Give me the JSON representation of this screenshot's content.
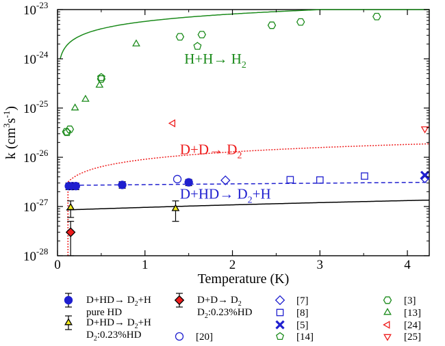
{
  "chart_data": {
    "type": "scatter",
    "xlabel": "Temperature (K)",
    "ylabel": "k (cm³s⁻¹)",
    "ylabel_parts": {
      "main": "k (cm",
      "exp1": "3",
      "mid": "s",
      "exp2": "-1",
      "end": ")"
    },
    "xlim": [
      0,
      4.25
    ],
    "ylim": [
      1e-28,
      1e-23
    ],
    "yscale": "log",
    "x_ticks": [
      "0",
      "1",
      "2",
      "3",
      "4"
    ],
    "y_ticks": [
      {
        "base": "10",
        "exp": "-28",
        "value": 1e-28
      },
      {
        "base": "10",
        "exp": "-27",
        "value": 1e-27
      },
      {
        "base": "10",
        "exp": "-26",
        "value": 1e-26
      },
      {
        "base": "10",
        "exp": "-25",
        "value": 1e-25
      },
      {
        "base": "10",
        "exp": "-24",
        "value": 1e-24
      },
      {
        "base": "10",
        "exp": "-23",
        "value": 1e-23
      }
    ],
    "annotations": [
      {
        "id": "hh",
        "pre": "H+H",
        "arrow": "→",
        "post": " H",
        "sub": "2",
        "tail": "",
        "color": "#1a8a1a",
        "x": 1.45,
        "y": 8e-25
      },
      {
        "id": "dd",
        "pre": "D+D",
        "arrow": "→",
        "post": " D",
        "sub": "2",
        "tail": "",
        "color": "#ee1c1c",
        "x": 1.4,
        "y": 1.15e-26
      },
      {
        "id": "dhd",
        "pre": "D+HD",
        "arrow": "→",
        "post": " D",
        "sub": "2",
        "tail": "+H",
        "color": "#1f1fcf",
        "x": 1.4,
        "y": 1.45e-27
      }
    ],
    "curves": [
      {
        "id": "hh-fit",
        "color": "#1a8a1a",
        "style": "solid",
        "a": 5.75e-24,
        "p": 0.5,
        "xmin": 0.03
      },
      {
        "id": "dd-fit",
        "color": "#ee1c1c",
        "style": "dotted",
        "a": 9.1e-27,
        "p": 0.5,
        "xmin": 0.12,
        "xcut": 0.12
      },
      {
        "id": "dhd-fit",
        "color": "#1f1fcf",
        "style": "dashed",
        "a": 2.68e-27,
        "slope": 1e-28,
        "linear": true,
        "xmin": 0.1
      },
      {
        "id": "dhd-d2-fit",
        "color": "#000000",
        "style": "solid",
        "a": 8.4e-28,
        "slope": 1.2e-28,
        "linear": true,
        "xmin": 0.1
      }
    ],
    "series": [
      {
        "id": "pure-hd",
        "marker": "circle-filled",
        "color": "#1f1fcf",
        "points": [
          [
            0.13,
            2.6e-27,
            2.2e-27,
            3e-27
          ],
          [
            0.17,
            2.6e-27,
            2.2e-27,
            3e-27
          ],
          [
            0.21,
            2.6e-27,
            2.2e-27,
            3e-27
          ],
          [
            0.74,
            2.75e-27,
            2.35e-27,
            3.2e-27
          ],
          [
            1.5,
            3.1e-27,
            2.65e-27,
            3.55e-27
          ]
        ]
      },
      {
        "id": "d2-hd",
        "marker": "triangle-filled",
        "color": "#f2ea1c",
        "points": [
          [
            0.15,
            9.5e-28,
            6e-28,
            1.3e-27
          ],
          [
            1.35,
            9e-28,
            5e-28,
            1.3e-27
          ]
        ]
      },
      {
        "id": "dd-d2-hd",
        "marker": "diamond-filled",
        "color": "#ee1c1c",
        "points": [
          [
            0.15,
            3e-28,
            1e-28,
            5e-28
          ]
        ]
      },
      {
        "id": "ref-20",
        "marker": "circle-open",
        "color": "#1f1fcf",
        "points": [
          [
            1.37,
            3.6e-27
          ]
        ]
      },
      {
        "id": "ref-7",
        "marker": "diamond-open",
        "color": "#1f1fcf",
        "points": [
          [
            1.92,
            3.4e-27
          ],
          [
            4.2,
            3.75e-27
          ]
        ]
      },
      {
        "id": "ref-8",
        "marker": "square-open",
        "color": "#1f1fcf",
        "points": [
          [
            2.66,
            3.5e-27
          ],
          [
            3.0,
            3.45e-27
          ],
          [
            3.51,
            4.15e-27
          ]
        ]
      },
      {
        "id": "ref-5",
        "marker": "x-filled",
        "color": "#1f1fcf",
        "points": [
          [
            4.2,
            4.3e-27
          ]
        ]
      },
      {
        "id": "ref-3",
        "marker": "hexagon-open",
        "color": "#1a8a1a",
        "points": [
          [
            0.1,
            3.3e-26
          ],
          [
            0.14,
            3.7e-26
          ],
          [
            0.5,
            3.9e-25
          ],
          [
            1.4,
            2.8e-24
          ],
          [
            1.65,
            3.1e-24
          ],
          [
            2.45,
            4.8e-24
          ],
          [
            2.78,
            5.6e-24
          ],
          [
            3.65,
            7.2e-24
          ]
        ]
      },
      {
        "id": "ref-13",
        "marker": "triangle-open",
        "color": "#1a8a1a",
        "points": [
          [
            0.2,
            1e-25
          ],
          [
            0.32,
            1.5e-25
          ],
          [
            0.48,
            2.9e-25
          ],
          [
            0.9,
            2e-24
          ]
        ]
      },
      {
        "id": "ref-14",
        "marker": "pentagon-open",
        "color": "#1a8a1a",
        "points": [
          [
            0.11,
            3.2e-26
          ],
          [
            0.5,
            4.2e-25
          ],
          [
            1.6,
            1.8e-24
          ]
        ]
      },
      {
        "id": "ref-24",
        "marker": "triangle-left-open",
        "color": "#ee1c1c",
        "points": [
          [
            1.32,
            4.9e-26
          ]
        ]
      },
      {
        "id": "ref-25",
        "marker": "triangle-down-open",
        "color": "#ee1c1c",
        "points": [
          [
            4.2,
            3.8e-26
          ]
        ]
      }
    ],
    "legend": [
      {
        "id": "pure-hd",
        "marker": "circle-filled",
        "color": "#1f1fcf",
        "errbar": true,
        "line1": {
          "pre": "D+HD",
          "arrow": "→",
          "post": " D",
          "sub": "2",
          "tail": "+H"
        },
        "line2": "pure HD"
      },
      {
        "id": "d2-hd",
        "marker": "triangle-filled",
        "color": "#f2ea1c",
        "errbar": true,
        "line1": {
          "pre": "D+HD",
          "arrow": "→",
          "post": " D",
          "sub": "2",
          "tail": "+H"
        },
        "line2": {
          "pre": "D",
          "sub": "2",
          "tail": ":0.23%HD"
        }
      },
      {
        "id": "dd-d2-hd",
        "marker": "diamond-filled",
        "color": "#ee1c1c",
        "errbar": true,
        "line1": {
          "pre": "D+D",
          "arrow": "→",
          "post": " D",
          "sub": "2",
          "tail": ""
        },
        "line2": {
          "pre": "D",
          "sub": "2",
          "tail": ":0.23%HD"
        }
      },
      {
        "id": "ref-20",
        "marker": "circle-open",
        "color": "#1f1fcf",
        "label": "[20]"
      },
      {
        "id": "ref-7",
        "marker": "diamond-open",
        "color": "#1f1fcf",
        "label": "[7]"
      },
      {
        "id": "ref-8",
        "marker": "square-open",
        "color": "#1f1fcf",
        "label": "[8]"
      },
      {
        "id": "ref-5",
        "marker": "x-filled",
        "color": "#1f1fcf",
        "label": "[5]"
      },
      {
        "id": "ref-14",
        "marker": "pentagon-open",
        "color": "#1a8a1a",
        "label": "[14]"
      },
      {
        "id": "ref-3",
        "marker": "hexagon-open",
        "color": "#1a8a1a",
        "label": "[3]"
      },
      {
        "id": "ref-13",
        "marker": "triangle-open",
        "color": "#1a8a1a",
        "label": "[13]"
      },
      {
        "id": "ref-24",
        "marker": "triangle-left-open",
        "color": "#ee1c1c",
        "label": "[24]"
      },
      {
        "id": "ref-25",
        "marker": "triangle-down-open",
        "color": "#ee1c1c",
        "label": "[25]"
      }
    ]
  }
}
